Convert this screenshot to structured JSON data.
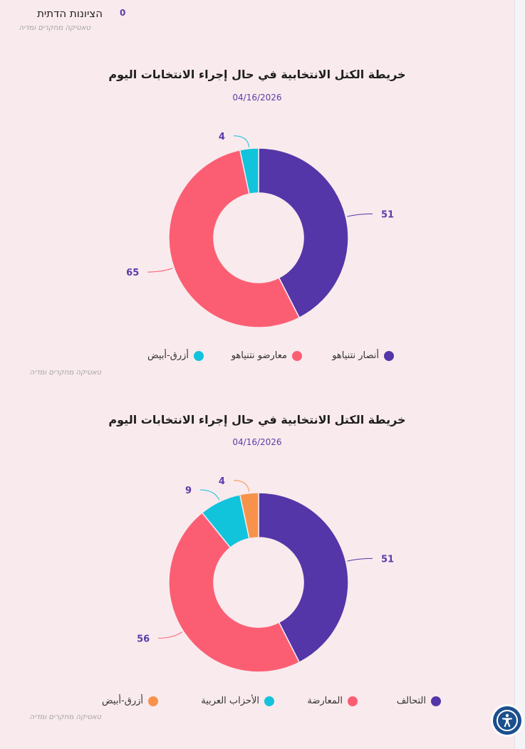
{
  "top": {
    "label": "הציונות הדתית",
    "value": "0",
    "source": "טאטיקה מחקרים ומדיה"
  },
  "chart_data": [
    {
      "type": "pie",
      "donut": true,
      "title": "خريطة الكتل الانتخابية في حال إجراء الانتخابات اليوم",
      "date": "04/16/2026",
      "categories": [
        "أنصار نتنياهو",
        "معارضو نتنياهو",
        "أزرق-أبيض"
      ],
      "values": [
        51,
        65,
        4
      ],
      "colors": [
        "#5436a8",
        "#fb5e73",
        "#12c3dc"
      ],
      "legend_position": "bottom",
      "source": "טאטיקה מחקרים ומדיה"
    },
    {
      "type": "pie",
      "donut": true,
      "title": "خريطة الكتل الانتخابية في حال إجراء الانتخابات اليوم",
      "date": "04/16/2026",
      "categories": [
        "التحالف",
        "المعارضة",
        "الأحزاب العربية",
        "أزرق-أبيض"
      ],
      "values": [
        51,
        56,
        9,
        4
      ],
      "colors": [
        "#5436a8",
        "#fb5e73",
        "#12c3dc",
        "#f6924a"
      ],
      "legend_position": "bottom",
      "source": "טאטיקה מחקרים ומדיה"
    }
  ]
}
